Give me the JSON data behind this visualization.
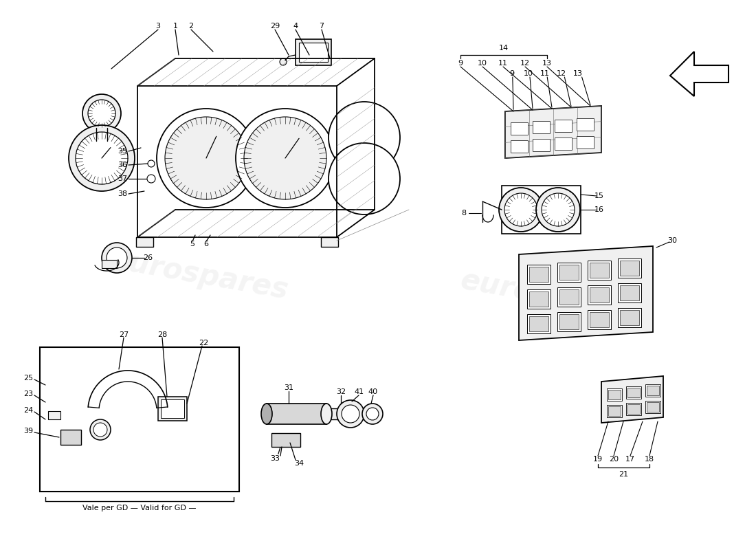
{
  "bg": "#ffffff",
  "lc": "#000000",
  "box_note": "Vale per GD — Valid for GD —",
  "wm_alpha": 0.13,
  "gray_light": "#f0f0f0",
  "gray_med": "#d8d8d8",
  "gray_dark": "#b0b0b0"
}
